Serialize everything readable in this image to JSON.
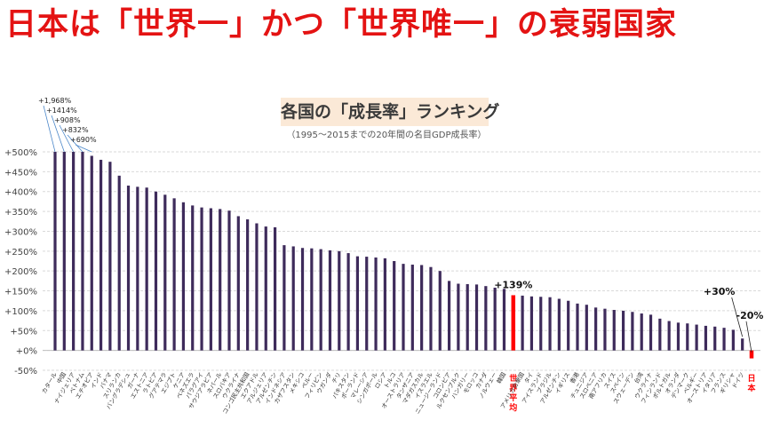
{
  "headline": "日本は「世界一」かつ「世界唯一」の衰弱国家",
  "colors": {
    "headline": "#e41313",
    "bar": "#3e2b5b",
    "highlight": "#ff0000",
    "title_bg": "#fbe9d7"
  },
  "chart_data": {
    "type": "bar",
    "title": "各国の「成長率」ランキング",
    "subtitle": "（1995～2015までの20年間の名目GDP成長率）",
    "ylim": [
      -50,
      500
    ],
    "yticks": [
      "+500%",
      "+450%",
      "+400%",
      "+350%",
      "+300%",
      "+250%",
      "+200%",
      "+150%",
      "+100%",
      "+50%",
      "+0%",
      "-50%"
    ],
    "grid": true,
    "categories": [
      "カタール",
      "中国",
      "ナイジェリア",
      "ベトナム",
      "エチオピア",
      "インド",
      "バナマ",
      "スリランカ",
      "バングラデシュ",
      "ガーナ",
      "エストニア",
      "ラトビア",
      "グアテマラ",
      "エジプト",
      "ケニア",
      "ベネズエラ",
      "パラグアイ",
      "サウジアラビア",
      "ネパール",
      "スロバキア",
      "ウクライナ",
      "コンゴ民主共和国",
      "エクアドル",
      "アルジェリア",
      "アルゼンチン",
      "インドネシア",
      "カザフスタン",
      "メキシコ",
      "ペルー",
      "フィリピン",
      "ウガンダ",
      "チリ",
      "パキスタン",
      "ポーランド",
      "マレーシア",
      "シンガポール",
      "ロシア",
      "トルコ",
      "オーストラリア",
      "タンザニア",
      "マダガスカル",
      "イスラエル",
      "ニュージーランド",
      "コロンビア",
      "ルクセンブルク",
      "ハンガリー",
      "モロッコ",
      "カナダ",
      "ノルウェー",
      "韓国",
      "世界平均",
      "アメリカ合衆国",
      "タイ",
      "アイスランド",
      "ブラジル",
      "アルゼンチン",
      "イギリス",
      "香港",
      "チュニジア",
      "スロベニア",
      "南アフリカ",
      "スイス",
      "スペイン",
      "スウェーデン",
      "台湾",
      "ウクライナ",
      "フィンランド",
      "ポルトガル",
      "オランダ",
      "デンマーク",
      "ベルギー",
      "オーストリア",
      "イタリア",
      "フランス",
      "ギリシャ",
      "ドイツ",
      "日本"
    ],
    "values": [
      500,
      500,
      500,
      500,
      490,
      480,
      475,
      440,
      415,
      412,
      410,
      400,
      392,
      383,
      373,
      365,
      360,
      358,
      356,
      352,
      338,
      330,
      320,
      312,
      310,
      265,
      262,
      258,
      257,
      255,
      252,
      250,
      245,
      237,
      236,
      234,
      232,
      225,
      218,
      216,
      215,
      210,
      200,
      175,
      168,
      167,
      166,
      162,
      158,
      155,
      139,
      138,
      136,
      135,
      134,
      130,
      125,
      118,
      115,
      108,
      105,
      102,
      100,
      97,
      93,
      90,
      80,
      74,
      70,
      68,
      65,
      62,
      60,
      57,
      52,
      30,
      -20
    ],
    "truncated_labels": [
      "+1,968%",
      "+1414%",
      "+908%",
      "+832%",
      "+690%"
    ],
    "annotations": [
      {
        "category": "世界平均",
        "text": "+139%"
      },
      {
        "category": "ドイツ",
        "text": "+30%"
      },
      {
        "category": "日本",
        "text": "-20%"
      }
    ],
    "highlighted": [
      "世界平均",
      "日本"
    ]
  }
}
